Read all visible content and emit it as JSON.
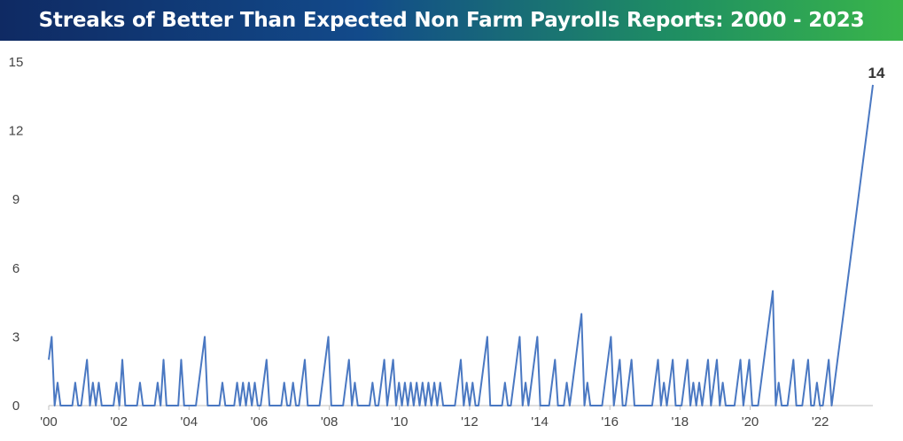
{
  "header": {
    "title": "Streaks of Better Than Expected Non Farm Payrolls Reports: 2000 - 2023"
  },
  "colors": {
    "banner_start": "#0f2a63",
    "banner_end": "#39b54a",
    "line": "#4a78c2",
    "axis": "#bfbfbf",
    "text": "#444444"
  },
  "chart_data": {
    "type": "line",
    "title": "Streaks of Better Than Expected Non Farm Payrolls Reports: 2000 - 2023",
    "xlabel": "",
    "ylabel": "",
    "ylim": [
      0,
      15
    ],
    "xlim": [
      2000.0,
      2023.5
    ],
    "grid": false,
    "legend": "none",
    "y_ticks": [
      0,
      3,
      6,
      9,
      12,
      15
    ],
    "x_ticks": [
      {
        "value": 2000,
        "label": "'00"
      },
      {
        "value": 2002,
        "label": "'02"
      },
      {
        "value": 2004,
        "label": "'04"
      },
      {
        "value": 2006,
        "label": "'06"
      },
      {
        "value": 2008,
        "label": "'08"
      },
      {
        "value": 2010,
        "label": "'10"
      },
      {
        "value": 2012,
        "label": "'12"
      },
      {
        "value": 2014,
        "label": "'14"
      },
      {
        "value": 2016,
        "label": "'16"
      },
      {
        "value": 2018,
        "label": "'18"
      },
      {
        "value": 2020,
        "label": "'20"
      },
      {
        "value": 2022,
        "label": "'22"
      }
    ],
    "series": [
      {
        "name": "",
        "color": "#4a78c2",
        "values": [
          2,
          3,
          0,
          1,
          0,
          0,
          0,
          0,
          0,
          1,
          0,
          0,
          1,
          2,
          0,
          1,
          0,
          1,
          0,
          0,
          0,
          0,
          0,
          1,
          0,
          2,
          0,
          0,
          0,
          0,
          0,
          1,
          0,
          0,
          0,
          0,
          0,
          1,
          0,
          2,
          0,
          0,
          0,
          0,
          0,
          2,
          0,
          0,
          0,
          0,
          0,
          1,
          2,
          3,
          0,
          0,
          0,
          0,
          0,
          1,
          0,
          0,
          0,
          0,
          1,
          0,
          1,
          0,
          1,
          0,
          1,
          0,
          0,
          1,
          2,
          0,
          0,
          0,
          0,
          0,
          1,
          0,
          0,
          1,
          0,
          0,
          1,
          2,
          0,
          0,
          0,
          0,
          0,
          1,
          2,
          3,
          0,
          0,
          0,
          0,
          0,
          1,
          2,
          0,
          1,
          0,
          0,
          0,
          0,
          0,
          1,
          0,
          0,
          1,
          2,
          0,
          1,
          2,
          0,
          1,
          0,
          1,
          0,
          1,
          0,
          1,
          0,
          1,
          0,
          1,
          0,
          1,
          0,
          1,
          0,
          0,
          0,
          0,
          0,
          1,
          2,
          0,
          1,
          0,
          1,
          0,
          0,
          1,
          2,
          3,
          0,
          0,
          0,
          0,
          0,
          1,
          0,
          0,
          1,
          2,
          3,
          0,
          1,
          0,
          1,
          2,
          3,
          0,
          0,
          0,
          0,
          1,
          2,
          0,
          0,
          0,
          1,
          0,
          1,
          2,
          3,
          4,
          0,
          1,
          0,
          0,
          0,
          0,
          0,
          1,
          2,
          3,
          0,
          1,
          2,
          0,
          0,
          1,
          2,
          0,
          0,
          0,
          0,
          0,
          0,
          0,
          1,
          2,
          0,
          1,
          0,
          1,
          2,
          0,
          0,
          0,
          1,
          2,
          0,
          1,
          0,
          1,
          0,
          1,
          2,
          0,
          1,
          2,
          0,
          1,
          0,
          0,
          0,
          0,
          1,
          2,
          0,
          1,
          2,
          0,
          0,
          0,
          1,
          2,
          3,
          4,
          5,
          0,
          1,
          0,
          0,
          0,
          1,
          2,
          0,
          0,
          0,
          1,
          2,
          0,
          0,
          1,
          0,
          0,
          1,
          2,
          0,
          1,
          2,
          3,
          4,
          5,
          6,
          7,
          8,
          9,
          10,
          11,
          12,
          13,
          14
        ]
      }
    ],
    "annotations": [
      {
        "text": "14",
        "x_index": "last",
        "y": 14
      }
    ]
  }
}
